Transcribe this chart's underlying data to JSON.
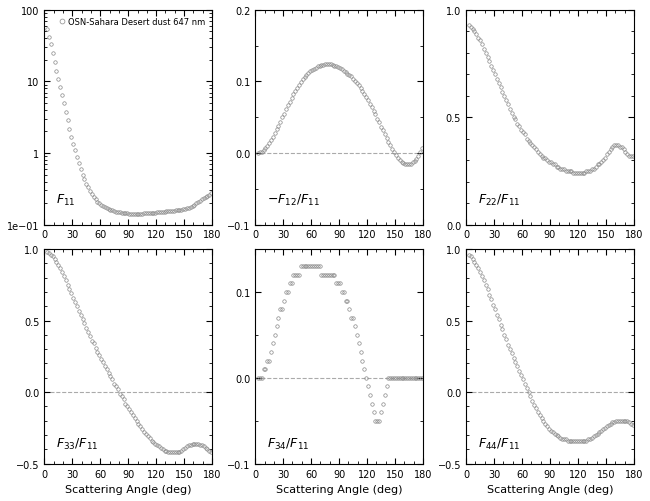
{
  "legend_label": "OSN-Sahara Desert dust 647 nm",
  "xlabel": "Scattering Angle (deg)",
  "angles": [
    3,
    5,
    7,
    9,
    11,
    13,
    15,
    17,
    19,
    21,
    23,
    25,
    27,
    29,
    31,
    33,
    35,
    37,
    39,
    41,
    43,
    45,
    47,
    49,
    51,
    53,
    55,
    57,
    59,
    61,
    63,
    65,
    67,
    69,
    71,
    73,
    75,
    77,
    79,
    81,
    83,
    85,
    87,
    89,
    91,
    93,
    95,
    97,
    99,
    101,
    103,
    105,
    107,
    109,
    111,
    113,
    115,
    117,
    119,
    121,
    123,
    125,
    127,
    129,
    131,
    133,
    135,
    137,
    139,
    141,
    143,
    145,
    147,
    149,
    151,
    153,
    155,
    157,
    159,
    161,
    163,
    165,
    167,
    169,
    171,
    173,
    175,
    177,
    179
  ],
  "F11": [
    55,
    42,
    33,
    25,
    19,
    14,
    11,
    8.5,
    6.5,
    5.0,
    3.8,
    2.9,
    2.2,
    1.7,
    1.35,
    1.1,
    0.88,
    0.72,
    0.6,
    0.5,
    0.43,
    0.37,
    0.33,
    0.295,
    0.265,
    0.245,
    0.225,
    0.21,
    0.198,
    0.19,
    0.182,
    0.175,
    0.17,
    0.166,
    0.162,
    0.158,
    0.155,
    0.152,
    0.15,
    0.148,
    0.146,
    0.145,
    0.144,
    0.143,
    0.142,
    0.142,
    0.142,
    0.142,
    0.142,
    0.142,
    0.142,
    0.142,
    0.143,
    0.143,
    0.144,
    0.144,
    0.145,
    0.146,
    0.147,
    0.148,
    0.149,
    0.15,
    0.151,
    0.152,
    0.153,
    0.154,
    0.155,
    0.156,
    0.157,
    0.158,
    0.159,
    0.16,
    0.161,
    0.163,
    0.165,
    0.168,
    0.172,
    0.177,
    0.183,
    0.19,
    0.198,
    0.207,
    0.216,
    0.225,
    0.234,
    0.243,
    0.253,
    0.263,
    0.275
  ],
  "F12": [
    0.0,
    0.001,
    0.002,
    0.004,
    0.007,
    0.01,
    0.014,
    0.018,
    0.023,
    0.028,
    0.033,
    0.038,
    0.044,
    0.05,
    0.055,
    0.061,
    0.067,
    0.072,
    0.077,
    0.082,
    0.087,
    0.091,
    0.095,
    0.099,
    0.103,
    0.106,
    0.109,
    0.112,
    0.114,
    0.116,
    0.118,
    0.119,
    0.121,
    0.122,
    0.123,
    0.123,
    0.124,
    0.124,
    0.124,
    0.124,
    0.123,
    0.122,
    0.121,
    0.12,
    0.119,
    0.117,
    0.115,
    0.113,
    0.111,
    0.109,
    0.107,
    0.104,
    0.101,
    0.098,
    0.095,
    0.091,
    0.087,
    0.083,
    0.079,
    0.074,
    0.069,
    0.064,
    0.059,
    0.054,
    0.048,
    0.043,
    0.037,
    0.032,
    0.027,
    0.021,
    0.016,
    0.011,
    0.006,
    0.002,
    -0.003,
    -0.007,
    -0.01,
    -0.012,
    -0.014,
    -0.016,
    -0.016,
    -0.016,
    -0.015,
    -0.013,
    -0.011,
    -0.008,
    -0.004,
    0.001,
    0.007
  ],
  "F22": [
    0.93,
    0.92,
    0.91,
    0.9,
    0.89,
    0.87,
    0.86,
    0.84,
    0.82,
    0.8,
    0.78,
    0.76,
    0.74,
    0.72,
    0.7,
    0.68,
    0.66,
    0.64,
    0.62,
    0.6,
    0.58,
    0.56,
    0.54,
    0.52,
    0.5,
    0.49,
    0.47,
    0.46,
    0.44,
    0.43,
    0.42,
    0.4,
    0.39,
    0.38,
    0.37,
    0.36,
    0.35,
    0.34,
    0.33,
    0.32,
    0.31,
    0.31,
    0.3,
    0.29,
    0.29,
    0.28,
    0.28,
    0.27,
    0.27,
    0.26,
    0.26,
    0.26,
    0.25,
    0.25,
    0.25,
    0.25,
    0.24,
    0.24,
    0.24,
    0.24,
    0.24,
    0.24,
    0.24,
    0.25,
    0.25,
    0.25,
    0.26,
    0.26,
    0.27,
    0.28,
    0.28,
    0.29,
    0.3,
    0.31,
    0.33,
    0.34,
    0.35,
    0.36,
    0.37,
    0.37,
    0.37,
    0.36,
    0.36,
    0.35,
    0.34,
    0.33,
    0.32,
    0.32,
    0.32
  ],
  "F33": [
    0.98,
    0.97,
    0.96,
    0.95,
    0.93,
    0.91,
    0.89,
    0.87,
    0.84,
    0.81,
    0.78,
    0.75,
    0.72,
    0.69,
    0.66,
    0.63,
    0.6,
    0.57,
    0.54,
    0.51,
    0.48,
    0.45,
    0.42,
    0.39,
    0.36,
    0.34,
    0.31,
    0.28,
    0.26,
    0.23,
    0.21,
    0.18,
    0.16,
    0.13,
    0.11,
    0.09,
    0.06,
    0.04,
    0.02,
    -0.01,
    -0.03,
    -0.05,
    -0.08,
    -0.1,
    -0.12,
    -0.14,
    -0.16,
    -0.18,
    -0.2,
    -0.22,
    -0.24,
    -0.26,
    -0.28,
    -0.29,
    -0.31,
    -0.32,
    -0.34,
    -0.35,
    -0.36,
    -0.37,
    -0.38,
    -0.39,
    -0.4,
    -0.41,
    -0.41,
    -0.42,
    -0.42,
    -0.42,
    -0.42,
    -0.42,
    -0.42,
    -0.42,
    -0.41,
    -0.4,
    -0.39,
    -0.38,
    -0.37,
    -0.37,
    -0.36,
    -0.36,
    -0.36,
    -0.36,
    -0.37,
    -0.37,
    -0.38,
    -0.39,
    -0.4,
    -0.41,
    -0.42
  ],
  "F34": [
    0.0,
    0.0,
    0.0,
    0.01,
    0.01,
    0.02,
    0.02,
    0.03,
    0.04,
    0.05,
    0.06,
    0.07,
    0.08,
    0.08,
    0.09,
    0.1,
    0.1,
    0.11,
    0.11,
    0.12,
    0.12,
    0.12,
    0.12,
    0.13,
    0.13,
    0.13,
    0.13,
    0.13,
    0.13,
    0.13,
    0.13,
    0.13,
    0.13,
    0.13,
    0.12,
    0.12,
    0.12,
    0.12,
    0.12,
    0.12,
    0.12,
    0.12,
    0.11,
    0.11,
    0.11,
    0.1,
    0.1,
    0.09,
    0.09,
    0.08,
    0.07,
    0.07,
    0.06,
    0.05,
    0.04,
    0.03,
    0.02,
    0.01,
    0.0,
    -0.01,
    -0.02,
    -0.03,
    -0.04,
    -0.05,
    -0.05,
    -0.05,
    -0.04,
    -0.03,
    -0.02,
    -0.01,
    0.0,
    0.0,
    0.0,
    0.0,
    0.0,
    0.0,
    0.0,
    0.0,
    0.0,
    0.0,
    0.0,
    0.0,
    0.0,
    0.0,
    0.0,
    0.0,
    0.0,
    0.0,
    0.0
  ],
  "F44": [
    0.96,
    0.95,
    0.93,
    0.91,
    0.89,
    0.87,
    0.84,
    0.81,
    0.78,
    0.75,
    0.72,
    0.68,
    0.65,
    0.61,
    0.58,
    0.54,
    0.51,
    0.47,
    0.44,
    0.4,
    0.37,
    0.33,
    0.3,
    0.27,
    0.24,
    0.21,
    0.18,
    0.15,
    0.12,
    0.09,
    0.06,
    0.03,
    0.0,
    -0.03,
    -0.06,
    -0.09,
    -0.11,
    -0.14,
    -0.16,
    -0.18,
    -0.2,
    -0.22,
    -0.24,
    -0.26,
    -0.27,
    -0.28,
    -0.29,
    -0.3,
    -0.31,
    -0.32,
    -0.33,
    -0.33,
    -0.33,
    -0.34,
    -0.34,
    -0.34,
    -0.34,
    -0.34,
    -0.34,
    -0.34,
    -0.34,
    -0.34,
    -0.34,
    -0.34,
    -0.33,
    -0.33,
    -0.32,
    -0.31,
    -0.3,
    -0.29,
    -0.28,
    -0.27,
    -0.26,
    -0.25,
    -0.24,
    -0.23,
    -0.22,
    -0.21,
    -0.21,
    -0.2,
    -0.2,
    -0.2,
    -0.2,
    -0.2,
    -0.2,
    -0.2,
    -0.21,
    -0.22,
    -0.23
  ],
  "marker_color": "#888888",
  "marker_size": 2.5,
  "dashed_color": "#aaaaaa",
  "bg_color": "#ffffff",
  "label_fontsize": 9,
  "tick_labelsize": 7,
  "legend_fontsize": 6
}
